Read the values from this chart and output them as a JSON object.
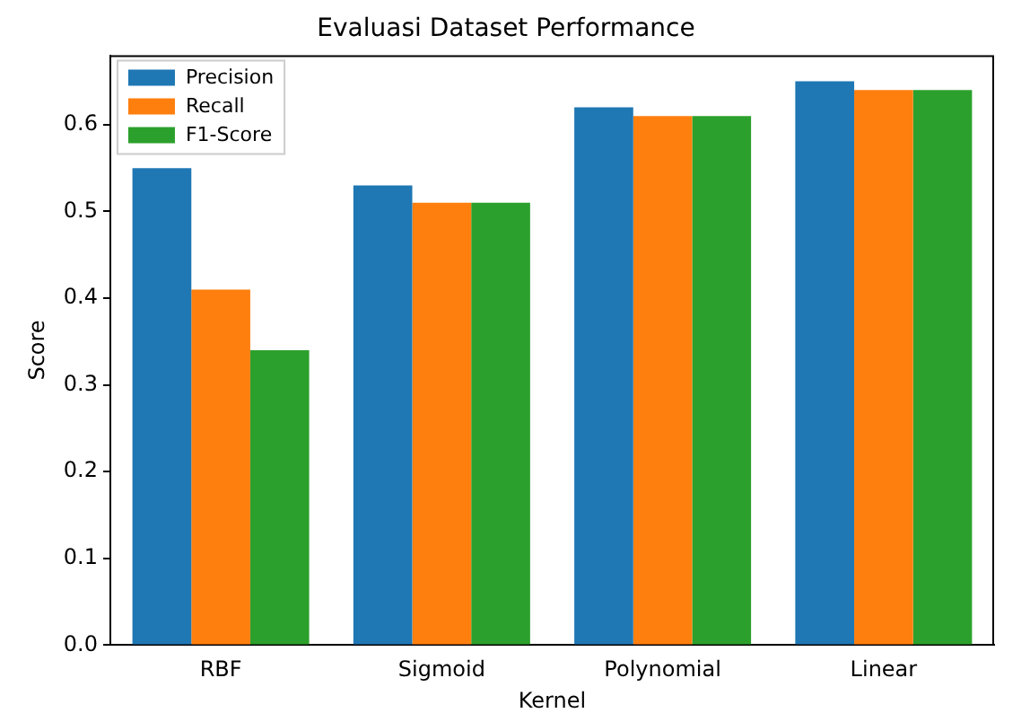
{
  "chart_data": {
    "type": "bar",
    "title": "Evaluasi Dataset Performance",
    "xlabel": "Kernel",
    "ylabel": "Score",
    "categories": [
      "RBF",
      "Sigmoid",
      "Polynomial",
      "Linear"
    ],
    "series": [
      {
        "name": "Precision",
        "color": "#1f77b4",
        "values": [
          0.55,
          0.53,
          0.62,
          0.65
        ]
      },
      {
        "name": "Recall",
        "color": "#ff7f0e",
        "values": [
          0.41,
          0.51,
          0.61,
          0.64
        ]
      },
      {
        "name": "F1-Score",
        "color": "#2ca02c",
        "values": [
          0.34,
          0.51,
          0.61,
          0.64
        ]
      }
    ],
    "ylim": [
      0,
      0.68
    ],
    "yticks": [
      {
        "value": 0,
        "label": "0.0"
      },
      0.1,
      0.2,
      0.3,
      0.4,
      0.5,
      0.6
    ],
    "grid": false,
    "legend": "top left"
  }
}
